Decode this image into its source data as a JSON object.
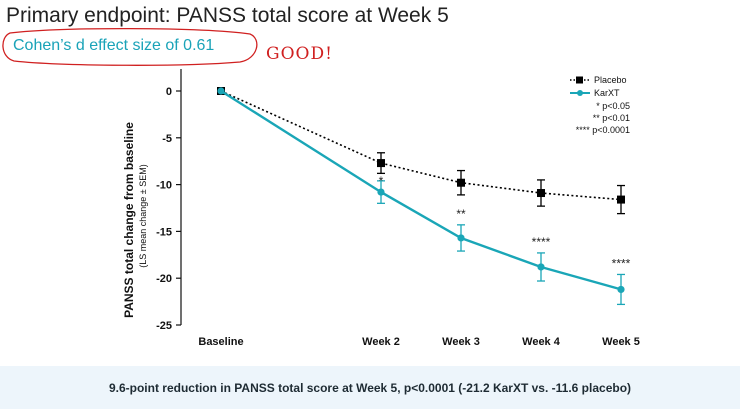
{
  "slide": {
    "title": "Primary endpoint: PANSS total score at Week 5",
    "effect_size_text": "Cohen’s d effect size of 0.61",
    "handwritten_note": "GOOD!",
    "footer_text": "9.6-point reduction in PANSS total score at Week 5, p<0.0001 (-21.2 KarXT vs. -11.6 placebo)"
  },
  "colors": {
    "placebo": "#000000",
    "karxt": "#1aa6b7",
    "accent_text": "#1aa3b8",
    "handwriting": "#d02020",
    "footer_band": "#edf5fb"
  },
  "chart_data": {
    "type": "line",
    "categories": [
      "Baseline",
      "Week 2",
      "Week 3",
      "Week 4",
      "Week 5"
    ],
    "x_weeks": [
      0,
      2,
      3,
      4,
      5
    ],
    "ylabel": "PANSS total change from baseline",
    "ylabel_sub": "(LS mean change ± SEM)",
    "xlabel": "",
    "ylim": [
      -25,
      0
    ],
    "yticks": [
      0,
      -5,
      -10,
      -15,
      -20,
      -25
    ],
    "grid": false,
    "legend_position": "top-right",
    "series": [
      {
        "name": "Placebo",
        "line_style": "dotted",
        "marker": "square",
        "values": [
          0,
          -7.7,
          -9.8,
          -10.9,
          -11.6
        ],
        "errors": [
          0,
          1.1,
          1.3,
          1.4,
          1.5
        ]
      },
      {
        "name": "KarXT",
        "line_style": "solid",
        "marker": "circle",
        "values": [
          0,
          -10.8,
          -15.7,
          -18.8,
          -21.2
        ],
        "errors": [
          0,
          1.2,
          1.4,
          1.5,
          1.6
        ]
      }
    ],
    "significance": [
      "",
      "*",
      "**",
      "****",
      "****"
    ],
    "legend_notes": [
      "*  p<0.05",
      "**  p<0.01",
      "****  p<0.0001"
    ]
  }
}
